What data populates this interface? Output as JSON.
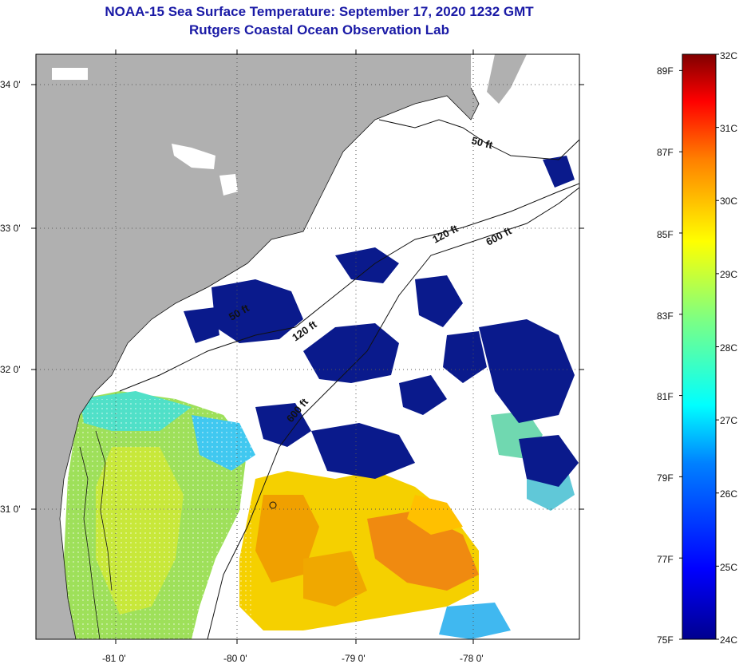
{
  "title": {
    "line1": "NOAA-15 Sea Surface Temperature:  September 17, 2020 1232 GMT",
    "line2": "Rutgers Coastal Ocean Observation Lab"
  },
  "map": {
    "lat_labels": [
      "34 0'",
      "33 0'",
      "32 0'",
      "31 0'"
    ],
    "lon_labels": [
      "-81 0'",
      "-80 0'",
      "-79 0'",
      "-78 0'"
    ],
    "contour_labels": [
      "50 ft",
      "120 ft",
      "600 ft",
      "50 ft",
      "120 ft",
      "600 ft"
    ],
    "colors": {
      "land": "#b0b0b0",
      "cold_water": "#0a1a8c"
    }
  },
  "colorbar": {
    "fahrenheit_labels": [
      "89F",
      "87F",
      "85F",
      "83F",
      "81F",
      "79F",
      "77F",
      "75F"
    ],
    "celsius_labels": [
      "32C",
      "31C",
      "30C",
      "29C",
      "28C",
      "27C",
      "26C",
      "25C",
      "24C"
    ]
  }
}
